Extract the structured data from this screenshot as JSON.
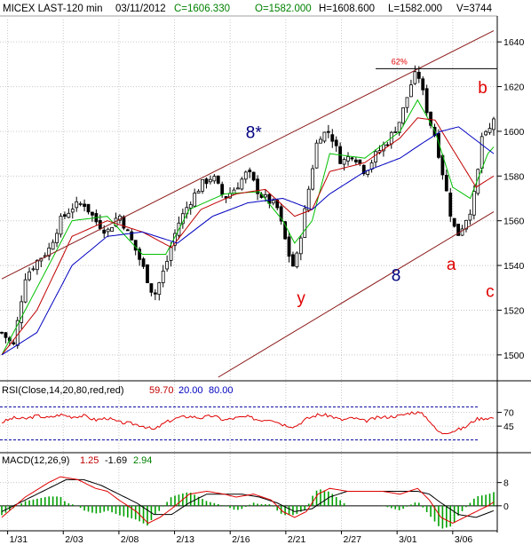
{
  "header": {
    "symbol": "MICEX LAST-120 min",
    "date": "03/11/2012",
    "close": "C=1606.330",
    "open": "O=1582.000",
    "high": "H=1608.600",
    "low": "L=1582.000",
    "volume": "V=3744"
  },
  "colors": {
    "background": "#ffffff",
    "grid": "#c8c8c8",
    "candle": "#000000",
    "ma_green": "#00c000",
    "ma_red": "#c00000",
    "ma_blue": "#0000c0",
    "channel": "#8b1a1a",
    "annotation_blue": "#000080",
    "annotation_red": "#e00000",
    "rsi_line": "#e00000",
    "rsi_band": "#0000a0",
    "macd_hist": "#00a000"
  },
  "chart_data": [
    {
      "type": "candlestick",
      "panel": "price",
      "ylim": [
        1490,
        1650
      ],
      "y_ticks": [
        1500,
        1520,
        1540,
        1560,
        1580,
        1600,
        1620,
        1640
      ],
      "x_ticks": [
        "1/31",
        "2/03",
        "2/08",
        "2/13",
        "2/16",
        "2/21",
        "2/27",
        "3/01",
        "3/06"
      ],
      "bar_count": 126,
      "close_path": [
        [
          0,
          1510
        ],
        [
          4,
          1504
        ],
        [
          8,
          1535
        ],
        [
          12,
          1542
        ],
        [
          16,
          1547
        ],
        [
          20,
          1560
        ],
        [
          24,
          1566
        ],
        [
          28,
          1568
        ],
        [
          32,
          1560
        ],
        [
          36,
          1555
        ],
        [
          40,
          1563
        ],
        [
          44,
          1552
        ],
        [
          48,
          1540
        ],
        [
          52,
          1526
        ],
        [
          56,
          1540
        ],
        [
          60,
          1558
        ],
        [
          64,
          1568
        ],
        [
          68,
          1576
        ],
        [
          72,
          1580
        ],
        [
          76,
          1570
        ],
        [
          80,
          1575
        ],
        [
          84,
          1582
        ],
        [
          88,
          1572
        ],
        [
          92,
          1568
        ],
        [
          94,
          1566
        ],
        [
          98,
          1545
        ],
        [
          100,
          1538
        ],
        [
          104,
          1568
        ],
        [
          108,
          1598
        ],
        [
          112,
          1600
        ],
        [
          116,
          1586
        ],
        [
          120,
          1590
        ],
        [
          124,
          1582
        ],
        [
          128,
          1590
        ],
        [
          132,
          1596
        ],
        [
          136,
          1605
        ],
        [
          140,
          1622
        ],
        [
          142,
          1627
        ],
        [
          146,
          1605
        ],
        [
          148,
          1598
        ],
        [
          152,
          1572
        ],
        [
          154,
          1558
        ],
        [
          156,
          1554
        ],
        [
          160,
          1565
        ],
        [
          162,
          1575
        ],
        [
          164,
          1598
        ],
        [
          166,
          1598
        ],
        [
          168,
          1606
        ]
      ],
      "moving_averages": [
        {
          "color": "green",
          "path": [
            [
              0,
              1500
            ],
            [
              12,
              1530
            ],
            [
              24,
              1560
            ],
            [
              36,
              1562
            ],
            [
              48,
              1545
            ],
            [
              56,
              1545
            ],
            [
              64,
              1565
            ],
            [
              76,
              1572
            ],
            [
              88,
              1573
            ],
            [
              96,
              1560
            ],
            [
              100,
              1550
            ],
            [
              106,
              1560
            ],
            [
              112,
              1590
            ],
            [
              124,
              1588
            ],
            [
              136,
              1600
            ],
            [
              142,
              1614
            ],
            [
              148,
              1600
            ],
            [
              154,
              1575
            ],
            [
              160,
              1570
            ],
            [
              166,
              1590
            ],
            [
              168,
              1593
            ]
          ]
        },
        {
          "color": "red",
          "path": [
            [
              0,
              1500
            ],
            [
              12,
              1520
            ],
            [
              24,
              1553
            ],
            [
              36,
              1560
            ],
            [
              48,
              1555
            ],
            [
              58,
              1548
            ],
            [
              68,
              1565
            ],
            [
              80,
              1572
            ],
            [
              90,
              1574
            ],
            [
              100,
              1562
            ],
            [
              106,
              1565
            ],
            [
              112,
              1582
            ],
            [
              124,
              1586
            ],
            [
              136,
              1597
            ],
            [
              142,
              1606
            ],
            [
              148,
              1605
            ],
            [
              154,
              1592
            ],
            [
              162,
              1575
            ],
            [
              168,
              1580
            ]
          ]
        },
        {
          "color": "blue",
          "path": [
            [
              0,
              1500
            ],
            [
              12,
              1510
            ],
            [
              24,
              1540
            ],
            [
              36,
              1553
            ],
            [
              48,
              1555
            ],
            [
              60,
              1550
            ],
            [
              72,
              1562
            ],
            [
              84,
              1568
            ],
            [
              96,
              1570
            ],
            [
              106,
              1565
            ],
            [
              112,
              1572
            ],
            [
              124,
              1582
            ],
            [
              136,
              1588
            ],
            [
              144,
              1595
            ],
            [
              150,
              1600
            ],
            [
              156,
              1602
            ],
            [
              162,
              1596
            ],
            [
              168,
              1590
            ]
          ]
        }
      ],
      "trend_lines": [
        {
          "name": "channel upper",
          "from": [
            0,
            1534
          ],
          "to": [
            126,
            1645
          ]
        },
        {
          "name": "channel lower",
          "from": [
            55,
            1490
          ],
          "to": [
            126,
            1564
          ]
        },
        {
          "name": "62% level",
          "from": [
            95,
            1628
          ],
          "to": [
            126,
            1628
          ]
        }
      ],
      "annotations": [
        {
          "text": "62%",
          "color": "red",
          "bar": 99,
          "price": 1630
        },
        {
          "text": "b",
          "color": "red",
          "bar": 121,
          "price": 1617
        },
        {
          "text": "8*",
          "color": "blue",
          "bar": 62,
          "price": 1597
        },
        {
          "text": "8",
          "color": "blue",
          "bar": 99,
          "price": 1533
        },
        {
          "text": "a",
          "color": "red",
          "bar": 113,
          "price": 1538
        },
        {
          "text": "y",
          "color": "red",
          "bar": 75,
          "price": 1523
        },
        {
          "text": "c",
          "color": "red",
          "bar": 123,
          "price": 1526
        }
      ]
    },
    {
      "type": "line",
      "panel": "rsi",
      "label": "RSI(Close,14,20,80,red,red)",
      "value": "59.70",
      "band_low": "20.00",
      "band_high": "80.00",
      "ylim": [
        0,
        100
      ],
      "y_ticks": [
        45,
        70
      ],
      "path": [
        [
          0,
          52
        ],
        [
          4,
          60
        ],
        [
          8,
          58
        ],
        [
          12,
          64
        ],
        [
          16,
          60
        ],
        [
          20,
          66
        ],
        [
          24,
          62
        ],
        [
          28,
          64
        ],
        [
          32,
          56
        ],
        [
          36,
          60
        ],
        [
          40,
          52
        ],
        [
          44,
          50
        ],
        [
          48,
          46
        ],
        [
          52,
          38
        ],
        [
          56,
          52
        ],
        [
          60,
          60
        ],
        [
          64,
          63
        ],
        [
          68,
          60
        ],
        [
          72,
          64
        ],
        [
          76,
          56
        ],
        [
          80,
          60
        ],
        [
          84,
          62
        ],
        [
          88,
          56
        ],
        [
          92,
          58
        ],
        [
          96,
          48
        ],
        [
          100,
          44
        ],
        [
          104,
          58
        ],
        [
          108,
          66
        ],
        [
          112,
          64
        ],
        [
          116,
          56
        ],
        [
          120,
          60
        ],
        [
          124,
          54
        ],
        [
          128,
          60
        ],
        [
          132,
          62
        ],
        [
          136,
          64
        ],
        [
          140,
          70
        ],
        [
          142,
          70
        ],
        [
          144,
          66
        ],
        [
          146,
          56
        ],
        [
          148,
          40
        ],
        [
          150,
          32
        ],
        [
          154,
          36
        ],
        [
          158,
          42
        ],
        [
          162,
          58
        ],
        [
          166,
          60
        ],
        [
          168,
          60
        ]
      ]
    },
    {
      "type": "line",
      "panel": "macd",
      "label": "MACD(12,26,9)",
      "value_macd": "1.25",
      "value_signal": "-1.69",
      "value_hist": "2.94",
      "ylim": [
        -8,
        14
      ],
      "y_ticks": [
        0,
        8
      ],
      "macd_path": [
        [
          0,
          -4
        ],
        [
          8,
          3
        ],
        [
          16,
          8
        ],
        [
          20,
          10
        ],
        [
          26,
          9
        ],
        [
          32,
          6
        ],
        [
          36,
          5
        ],
        [
          40,
          2
        ],
        [
          46,
          -2
        ],
        [
          50,
          -6
        ],
        [
          54,
          -4
        ],
        [
          58,
          -1
        ],
        [
          64,
          4
        ],
        [
          70,
          5
        ],
        [
          76,
          4
        ],
        [
          80,
          3
        ],
        [
          86,
          4
        ],
        [
          92,
          2
        ],
        [
          96,
          -2
        ],
        [
          100,
          -4
        ],
        [
          104,
          -2
        ],
        [
          108,
          4
        ],
        [
          112,
          6
        ],
        [
          118,
          5
        ],
        [
          124,
          5
        ],
        [
          130,
          5
        ],
        [
          136,
          4
        ],
        [
          142,
          6
        ],
        [
          146,
          2
        ],
        [
          150,
          -4
        ],
        [
          154,
          -6
        ],
        [
          160,
          -3
        ],
        [
          166,
          0
        ],
        [
          168,
          1.25
        ]
      ],
      "signal_path": [
        [
          0,
          -2
        ],
        [
          8,
          2
        ],
        [
          16,
          6
        ],
        [
          22,
          9
        ],
        [
          28,
          9
        ],
        [
          34,
          7
        ],
        [
          40,
          4
        ],
        [
          46,
          1
        ],
        [
          52,
          -3
        ],
        [
          58,
          -3
        ],
        [
          64,
          1
        ],
        [
          70,
          4
        ],
        [
          76,
          4
        ],
        [
          82,
          4
        ],
        [
          88,
          3
        ],
        [
          94,
          1
        ],
        [
          100,
          -2
        ],
        [
          106,
          -1
        ],
        [
          112,
          3
        ],
        [
          118,
          5
        ],
        [
          124,
          5
        ],
        [
          130,
          5
        ],
        [
          136,
          5
        ],
        [
          142,
          5
        ],
        [
          146,
          4
        ],
        [
          150,
          1
        ],
        [
          156,
          -3
        ],
        [
          162,
          -4
        ],
        [
          168,
          -1.69
        ]
      ]
    }
  ]
}
